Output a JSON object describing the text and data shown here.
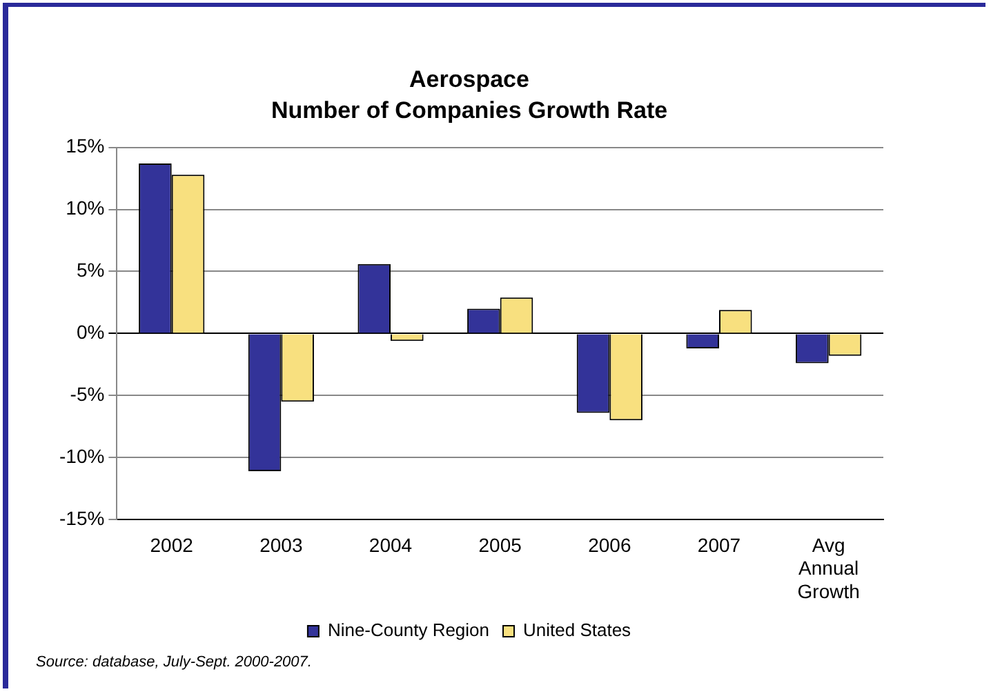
{
  "chart_data": {
    "type": "bar",
    "title": "Aerospace",
    "subtitle": "Number of Companies Growth Rate",
    "categories": [
      "2002",
      "2003",
      "2004",
      "2005",
      "2006",
      "2007",
      "Avg Annual Growth"
    ],
    "series": [
      {
        "name": "Nine-County Region",
        "color": "#333399",
        "values": [
          13.7,
          -11.1,
          5.6,
          2.0,
          -6.4,
          -1.2,
          -2.4
        ]
      },
      {
        "name": "United States",
        "color": "#f8e07f",
        "values": [
          12.8,
          -5.5,
          -0.6,
          2.9,
          -7.0,
          1.9,
          -1.8
        ]
      }
    ],
    "ylim": [
      -15,
      15
    ],
    "yticks": [
      {
        "value": -15,
        "label": "-15%"
      },
      {
        "value": -10,
        "label": "-10%"
      },
      {
        "value": -5,
        "label": "-5%"
      },
      {
        "value": 0,
        "label": "0%"
      },
      {
        "value": 5,
        "label": "5%"
      },
      {
        "value": 10,
        "label": "10%"
      },
      {
        "value": 15,
        "label": "15%"
      }
    ],
    "grid": "y",
    "legend": "bottom",
    "annotations": [
      "Source: database, July-Sept. 2000-2007."
    ]
  }
}
